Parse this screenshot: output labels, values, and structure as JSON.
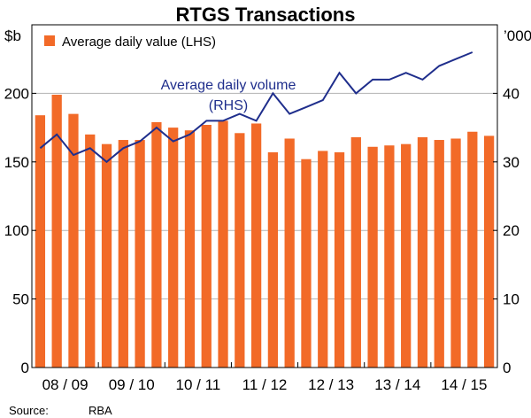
{
  "colors": {
    "bar": "#f26a28",
    "line": "#1f2e8c",
    "grid": "#b3b3b3",
    "frame": "#000000"
  },
  "source": {
    "label": "Source:",
    "value": "RBA"
  },
  "chart_data": {
    "type": "bar",
    "title": "RTGS Transactions",
    "left_axis": {
      "unit": "$b",
      "min": 0,
      "max": 250,
      "ticks": [
        0,
        50,
        100,
        150,
        200
      ]
    },
    "right_axis": {
      "unit": "’000",
      "min": 0,
      "max": 50,
      "ticks": [
        0,
        10,
        20,
        30,
        40
      ]
    },
    "x_tick_labels": [
      "08 / 09",
      "09 / 10",
      "10 / 11",
      "11 / 12",
      "12 / 13",
      "13 / 14",
      "14 / 15"
    ],
    "grid": true,
    "legend_position": "top-left",
    "series": [
      {
        "name": "Average daily value (LHS)",
        "type": "bar",
        "axis": "left",
        "values": [
          184,
          199,
          185,
          170,
          163,
          166,
          166,
          179,
          175,
          173,
          177,
          180,
          171,
          178,
          157,
          167,
          152,
          158,
          157,
          168,
          161,
          162,
          163,
          168,
          166,
          167,
          172,
          169
        ]
      },
      {
        "name": "Average daily volume",
        "name_line2": "(RHS)",
        "type": "line",
        "axis": "right",
        "values": [
          32,
          34,
          31,
          32,
          30,
          32,
          33,
          35,
          33,
          34,
          36,
          36,
          37,
          36,
          40,
          37,
          38,
          39,
          43,
          40,
          42,
          42,
          43,
          42,
          44,
          45,
          46
        ]
      }
    ]
  }
}
